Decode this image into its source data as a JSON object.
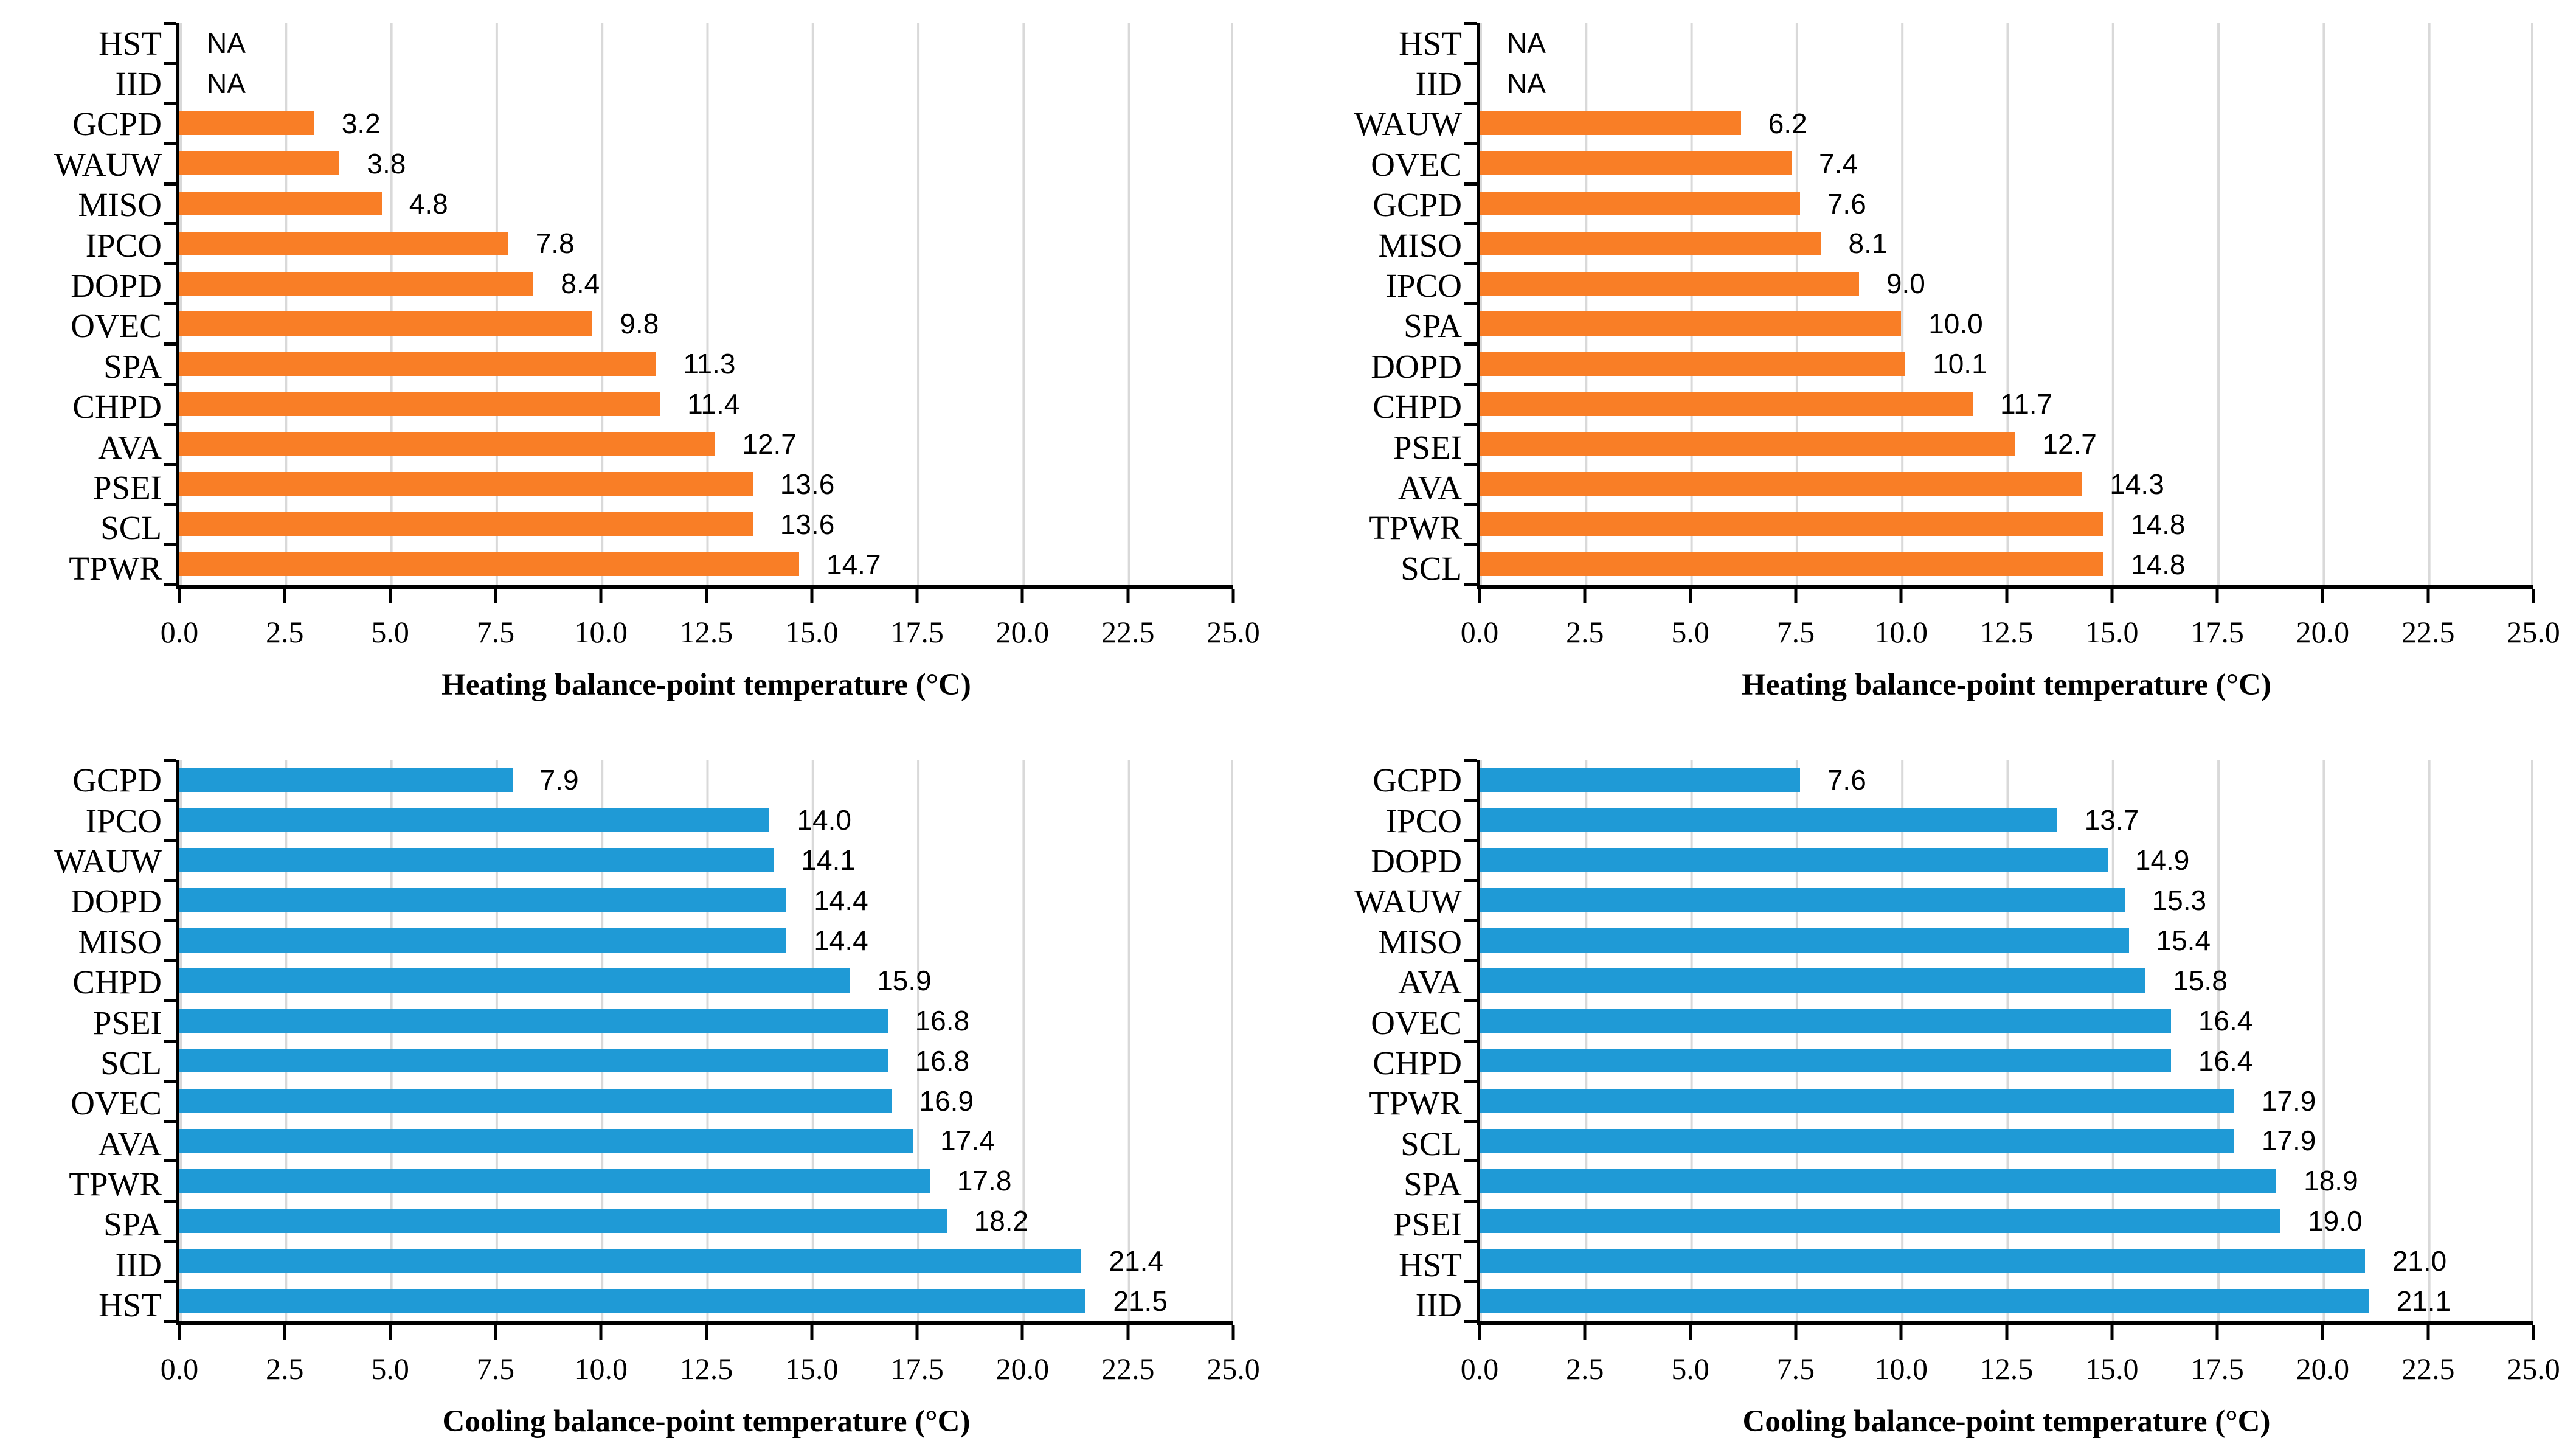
{
  "figure": {
    "background": "#FFFFFF",
    "grid_layout": "2x2"
  },
  "chart_data": [
    {
      "type": "bar",
      "orientation": "horizontal",
      "panel": "top-left",
      "xlabel": "Heating balance-point temperature (°C)",
      "categories": [
        "HST",
        "IID",
        "GCPD",
        "WAUW",
        "MISO",
        "IPCO",
        "DOPD",
        "OVEC",
        "SPA",
        "CHPD",
        "AVA",
        "PSEI",
        "SCL",
        "TPWR"
      ],
      "values": [
        null,
        null,
        3.2,
        3.8,
        4.8,
        7.8,
        8.4,
        9.8,
        11.3,
        11.4,
        12.7,
        13.6,
        13.6,
        14.7
      ],
      "value_labels": [
        "NA",
        "NA",
        "3.2",
        "3.8",
        "4.8",
        "7.8",
        "8.4",
        "9.8",
        "11.3",
        "11.4",
        "12.7",
        "13.6",
        "13.6",
        "14.7"
      ],
      "xlim": [
        0,
        25
      ],
      "x_ticks": [
        "0.0",
        "2.5",
        "5.0",
        "7.5",
        "10.0",
        "12.5",
        "15.0",
        "17.5",
        "20.0",
        "22.5",
        "25.0"
      ],
      "bar_color": "#F97E26",
      "gridline_color": "#D9D9D9",
      "grid": "vertical-major"
    },
    {
      "type": "bar",
      "orientation": "horizontal",
      "panel": "top-right",
      "xlabel": "Heating balance-point temperature (°C)",
      "categories": [
        "HST",
        "IID",
        "WAUW",
        "OVEC",
        "GCPD",
        "MISO",
        "IPCO",
        "SPA",
        "DOPD",
        "CHPD",
        "PSEI",
        "AVA",
        "TPWR",
        "SCL"
      ],
      "values": [
        null,
        null,
        6.2,
        7.4,
        7.6,
        8.1,
        9.0,
        10.0,
        10.1,
        11.7,
        12.7,
        14.3,
        14.8,
        14.8
      ],
      "value_labels": [
        "NA",
        "NA",
        "6.2",
        "7.4",
        "7.6",
        "8.1",
        "9.0",
        "10.0",
        "10.1",
        "11.7",
        "12.7",
        "14.3",
        "14.8",
        "14.8"
      ],
      "xlim": [
        0,
        25
      ],
      "x_ticks": [
        "0.0",
        "2.5",
        "5.0",
        "7.5",
        "10.0",
        "12.5",
        "15.0",
        "17.5",
        "20.0",
        "22.5",
        "25.0"
      ],
      "bar_color": "#F97E26",
      "gridline_color": "#D9D9D9",
      "grid": "vertical-major"
    },
    {
      "type": "bar",
      "orientation": "horizontal",
      "panel": "bottom-left",
      "xlabel": "Cooling balance-point temperature (°C)",
      "categories": [
        "GCPD",
        "IPCO",
        "WAUW",
        "DOPD",
        "MISO",
        "CHPD",
        "PSEI",
        "SCL",
        "OVEC",
        "AVA",
        "TPWR",
        "SPA",
        "IID",
        "HST"
      ],
      "values": [
        7.9,
        14.0,
        14.1,
        14.4,
        14.4,
        15.9,
        16.8,
        16.8,
        16.9,
        17.4,
        17.8,
        18.2,
        21.4,
        21.5
      ],
      "value_labels": [
        "7.9",
        "14.0",
        "14.1",
        "14.4",
        "14.4",
        "15.9",
        "16.8",
        "16.8",
        "16.9",
        "17.4",
        "17.8",
        "18.2",
        "21.4",
        "21.5"
      ],
      "xlim": [
        0,
        25
      ],
      "x_ticks": [
        "0.0",
        "2.5",
        "5.0",
        "7.5",
        "10.0",
        "12.5",
        "15.0",
        "17.5",
        "20.0",
        "22.5",
        "25.0"
      ],
      "bar_color": "#1F9AD6",
      "gridline_color": "#D9D9D9",
      "grid": "vertical-major"
    },
    {
      "type": "bar",
      "orientation": "horizontal",
      "panel": "bottom-right",
      "xlabel": "Cooling balance-point temperature (°C)",
      "categories": [
        "GCPD",
        "IPCO",
        "DOPD",
        "WAUW",
        "MISO",
        "AVA",
        "OVEC",
        "CHPD",
        "TPWR",
        "SCL",
        "SPA",
        "PSEI",
        "HST",
        "IID"
      ],
      "values": [
        7.6,
        13.7,
        14.9,
        15.3,
        15.4,
        15.8,
        16.4,
        16.4,
        17.9,
        17.9,
        18.9,
        19.0,
        21.0,
        21.1
      ],
      "value_labels": [
        "7.6",
        "13.7",
        "14.9",
        "15.3",
        "15.4",
        "15.8",
        "16.4",
        "16.4",
        "17.9",
        "17.9",
        "18.9",
        "19.0",
        "21.0",
        "21.1"
      ],
      "xlim": [
        0,
        25
      ],
      "x_ticks": [
        "0.0",
        "2.5",
        "5.0",
        "7.5",
        "10.0",
        "12.5",
        "15.0",
        "17.5",
        "20.0",
        "22.5",
        "25.0"
      ],
      "bar_color": "#1F9AD6",
      "gridline_color": "#D9D9D9",
      "grid": "vertical-major"
    }
  ]
}
